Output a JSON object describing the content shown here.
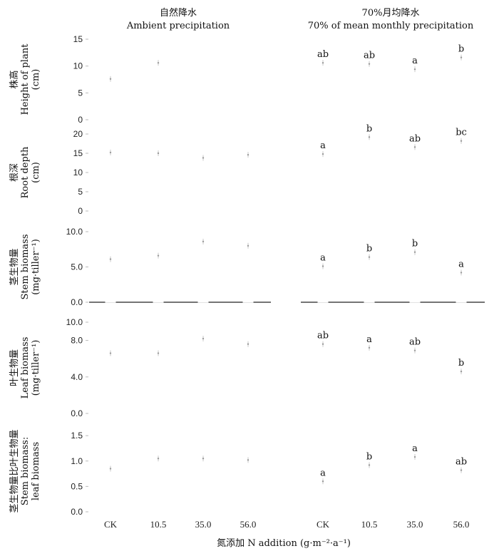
{
  "header": {
    "left_title_cn": "自然降水",
    "left_title_en": "Ambient precipitation",
    "right_title_cn": "70%月均降水",
    "right_title_en": "70% of mean monthly precipitation"
  },
  "x_axis": {
    "label": "氮添加 N addition (g·m⁻²·a⁻¹)"
  },
  "chart_data": {
    "type": "bar",
    "categories": [
      "CK",
      "10.5",
      "35.0",
      "56.0"
    ],
    "treatments": [
      "Ambient precipitation",
      "70% of mean monthly precipitation"
    ],
    "rows": [
      {
        "ylabel_cn": "株高",
        "ylabel_en": [
          "Height of plant",
          "(cm)"
        ],
        "ylim": [
          0,
          15
        ],
        "ticks": [
          "15",
          "10",
          "5",
          "0"
        ],
        "tick_values": [
          15,
          10,
          5,
          0
        ],
        "ambient": [
          7.6,
          10.6,
          0,
          0
        ],
        "reduced": [
          10.6,
          10.4,
          9.4,
          11.6
        ],
        "letters": [
          "ab",
          "ab",
          "a",
          "b"
        ]
      },
      {
        "ylabel_cn": "根深",
        "ylabel_en": [
          "Root depth",
          "(cm)"
        ],
        "ylim": [
          0,
          20
        ],
        "ticks": [
          "20",
          "15",
          "10",
          "5",
          "0"
        ],
        "tick_values": [
          20,
          15,
          10,
          5,
          0
        ],
        "ambient": [
          15.2,
          15.0,
          13.8,
          14.6
        ],
        "reduced": [
          14.8,
          19.2,
          16.6,
          18.2
        ],
        "letters": [
          "a",
          "b",
          "ab",
          "bc"
        ]
      },
      {
        "ylabel_cn": "茎生物量",
        "ylabel_en": [
          "Stem biomass",
          "(mg·tiller⁻¹)"
        ],
        "ylim": [
          0,
          10
        ],
        "ticks": [
          "10.0",
          "5.0",
          "0.0"
        ],
        "tick_values": [
          10,
          5,
          0
        ],
        "ambient": [
          6.1,
          6.6,
          8.6,
          8.0
        ],
        "reduced": [
          5.1,
          6.4,
          7.1,
          4.2
        ],
        "letters": [
          "a",
          "b",
          "b",
          "a"
        ]
      },
      {
        "ylabel_cn": "叶生物量",
        "ylabel_en": [
          "Leaf biomass",
          "(mg·tiller⁻¹)"
        ],
        "ylim": [
          0,
          10
        ],
        "ticks": [
          "10.0",
          "8.0",
          "4.0",
          "0.0"
        ],
        "tick_values": [
          10,
          8,
          4,
          0
        ],
        "ambient": [
          6.6,
          6.6,
          8.2,
          7.6
        ],
        "reduced": [
          7.6,
          7.2,
          6.9,
          4.6
        ],
        "letters": [
          "ab",
          "a",
          "ab",
          "b"
        ]
      },
      {
        "ylabel_cn": "茎生物量比叶生物量",
        "ylabel_en": [
          "Stem biomass:",
          "leaf biomass"
        ],
        "ylim": [
          0,
          1.6
        ],
        "ticks": [
          "1.5",
          "1.0",
          "0.5",
          "0.0"
        ],
        "tick_values": [
          1.5,
          1.0,
          0.5,
          0
        ],
        "ambient": [
          0.85,
          1.05,
          1.05,
          1.02
        ],
        "reduced": [
          0.6,
          0.92,
          1.08,
          0.82
        ],
        "letters": [
          "a",
          "b",
          "a",
          "ab"
        ]
      }
    ]
  }
}
